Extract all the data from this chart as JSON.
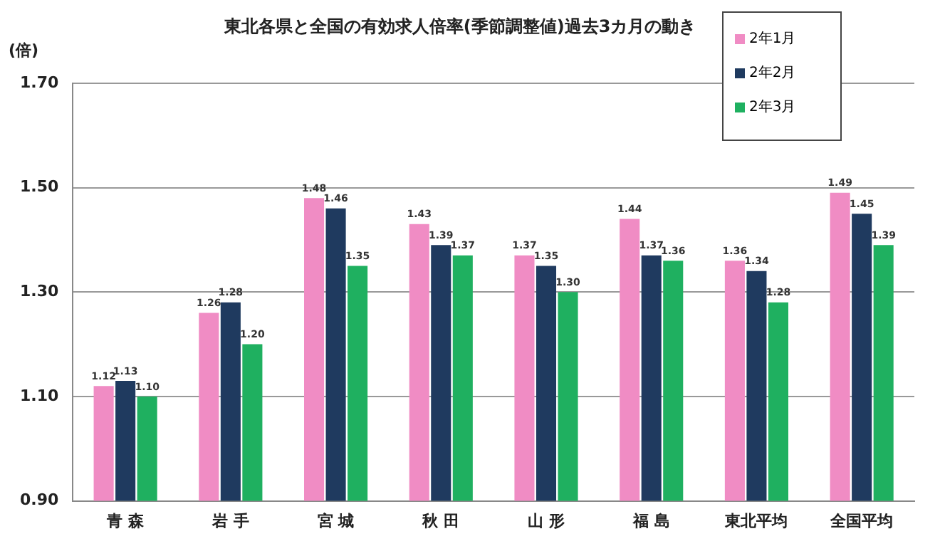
{
  "chart_data": {
    "type": "bar",
    "title": "東北各県と全国の有効求人倍率(季節調整値)過去3カ月の動き",
    "ylabel": "(倍)",
    "categories": [
      "青 森",
      "岩 手",
      "宮 城",
      "秋 田",
      "山 形",
      "福 島",
      "東北平均",
      "全国平均"
    ],
    "series": [
      {
        "name": "2年1月",
        "color": "#f08cc4",
        "values": [
          1.12,
          1.26,
          1.48,
          1.43,
          1.37,
          1.44,
          1.36,
          1.49
        ],
        "value_labels": [
          "1.12",
          "1.26",
          "1.48",
          "1.43",
          "1.37",
          "1.44",
          "1.36",
          "1.49"
        ]
      },
      {
        "name": "2年2月",
        "color": "#1f3a5f",
        "values": [
          1.13,
          1.28,
          1.46,
          1.39,
          1.35,
          1.37,
          1.34,
          1.45
        ],
        "value_labels": [
          "1.13",
          "1.28",
          "1.46",
          "1.39",
          "1.35",
          "1.37",
          "1.34",
          "1.45"
        ]
      },
      {
        "name": "2年3月",
        "color": "#1fb060",
        "values": [
          1.1,
          1.2,
          1.35,
          1.37,
          1.3,
          1.36,
          1.28,
          1.39
        ],
        "value_labels": [
          "1.10",
          "1.20",
          "1.35",
          "1.37",
          "1.30",
          "1.36",
          "1.28",
          "1.39"
        ]
      }
    ],
    "ylim": [
      0.9,
      1.7
    ],
    "yticks": [
      {
        "value": 0.9,
        "label": "0.90"
      },
      {
        "value": 1.1,
        "label": "1.10"
      },
      {
        "value": 1.3,
        "label": "1.30"
      },
      {
        "value": 1.5,
        "label": "1.50"
      },
      {
        "value": 1.7,
        "label": "1.70"
      }
    ],
    "grid": "y",
    "legend": "top right"
  }
}
